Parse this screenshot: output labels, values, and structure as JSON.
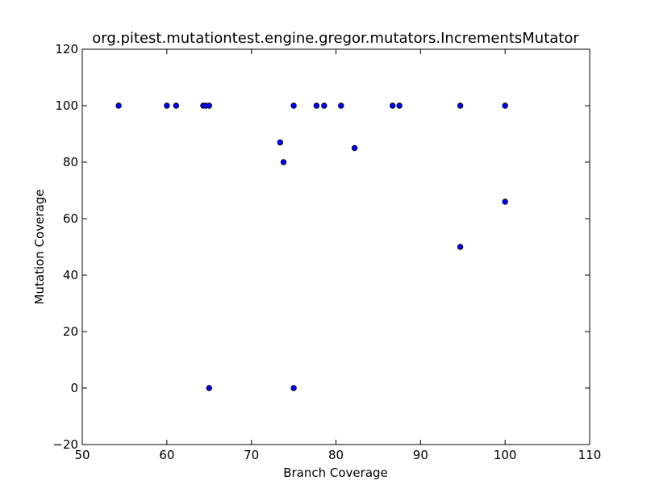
{
  "chart_data": {
    "type": "scatter",
    "title": "org.pitest.mutationtest.engine.gregor.mutators.IncrementsMutator",
    "xlabel": "Branch Coverage",
    "ylabel": "Mutation Coverage",
    "xlim": [
      50,
      110
    ],
    "ylim": [
      -20,
      120
    ],
    "xticks": [
      50,
      60,
      70,
      80,
      90,
      100,
      110
    ],
    "yticks": [
      -20,
      0,
      20,
      40,
      60,
      80,
      100,
      120
    ],
    "xtick_labels": [
      "50",
      "60",
      "70",
      "80",
      "90",
      "100",
      "110"
    ],
    "ytick_labels": [
      "−20",
      "0",
      "20",
      "40",
      "60",
      "80",
      "100",
      "120"
    ],
    "grid": false,
    "legend": "none",
    "marker_color": "#0000ff",
    "series": [
      {
        "points": [
          {
            "x": 54.3,
            "y": 100
          },
          {
            "x": 60.0,
            "y": 100
          },
          {
            "x": 61.1,
            "y": 100
          },
          {
            "x": 64.3,
            "y": 100
          },
          {
            "x": 64.6,
            "y": 100
          },
          {
            "x": 65.0,
            "y": 100
          },
          {
            "x": 75.0,
            "y": 100
          },
          {
            "x": 77.7,
            "y": 100
          },
          {
            "x": 78.6,
            "y": 100
          },
          {
            "x": 80.6,
            "y": 100
          },
          {
            "x": 86.7,
            "y": 100
          },
          {
            "x": 87.5,
            "y": 100
          },
          {
            "x": 94.7,
            "y": 100
          },
          {
            "x": 100.0,
            "y": 100
          },
          {
            "x": 73.4,
            "y": 87
          },
          {
            "x": 82.2,
            "y": 85
          },
          {
            "x": 73.8,
            "y": 80
          },
          {
            "x": 100.0,
            "y": 66
          },
          {
            "x": 94.7,
            "y": 50
          },
          {
            "x": 65.0,
            "y": 0
          },
          {
            "x": 75.0,
            "y": 0
          }
        ]
      }
    ]
  }
}
